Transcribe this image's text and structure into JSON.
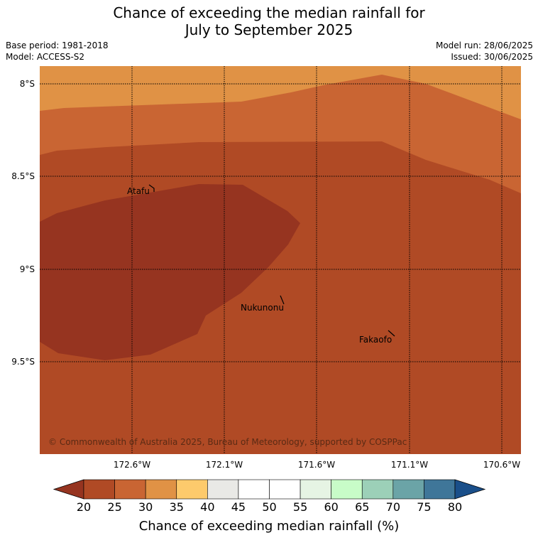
{
  "title": {
    "line1": "Chance of exceeding the median rainfall for",
    "line2": "July to September 2025"
  },
  "meta": {
    "base_period": "Base period: 1981-2018",
    "model": "Model: ACCESS-S2",
    "model_run": "Model run: 28/06/2025",
    "issued": "Issued: 30/06/2025"
  },
  "map": {
    "lat_labels": [
      "8°S",
      "8.5°S",
      "9°S",
      "9.5°S"
    ],
    "lon_labels": [
      "172.6°W",
      "172.1°W",
      "171.6°W",
      "171.1°W",
      "170.6°W"
    ],
    "places": [
      "Atafu",
      "Nukunonu",
      "Fakaofo"
    ],
    "credit": "© Commonwealth of Australia 2025, Bureau of Meteorology, supported by COSPPac"
  },
  "colorbar": {
    "ticks": [
      "20",
      "25",
      "30",
      "35",
      "40",
      "45",
      "50",
      "55",
      "60",
      "65",
      "70",
      "75",
      "80"
    ],
    "colors": [
      "#b04a25",
      "#c96533",
      "#e09245",
      "#fdca6c",
      "#e9e9e6",
      "#ffffff",
      "#ffffff",
      "#e6f4e4",
      "#c8fcc8",
      "#9cd0b8",
      "#6ba4a7",
      "#3f7699"
    ],
    "under_color": "#963420",
    "over_color": "#1a4f8a",
    "title": "Chance of exceeding median rainfall (%)"
  }
}
